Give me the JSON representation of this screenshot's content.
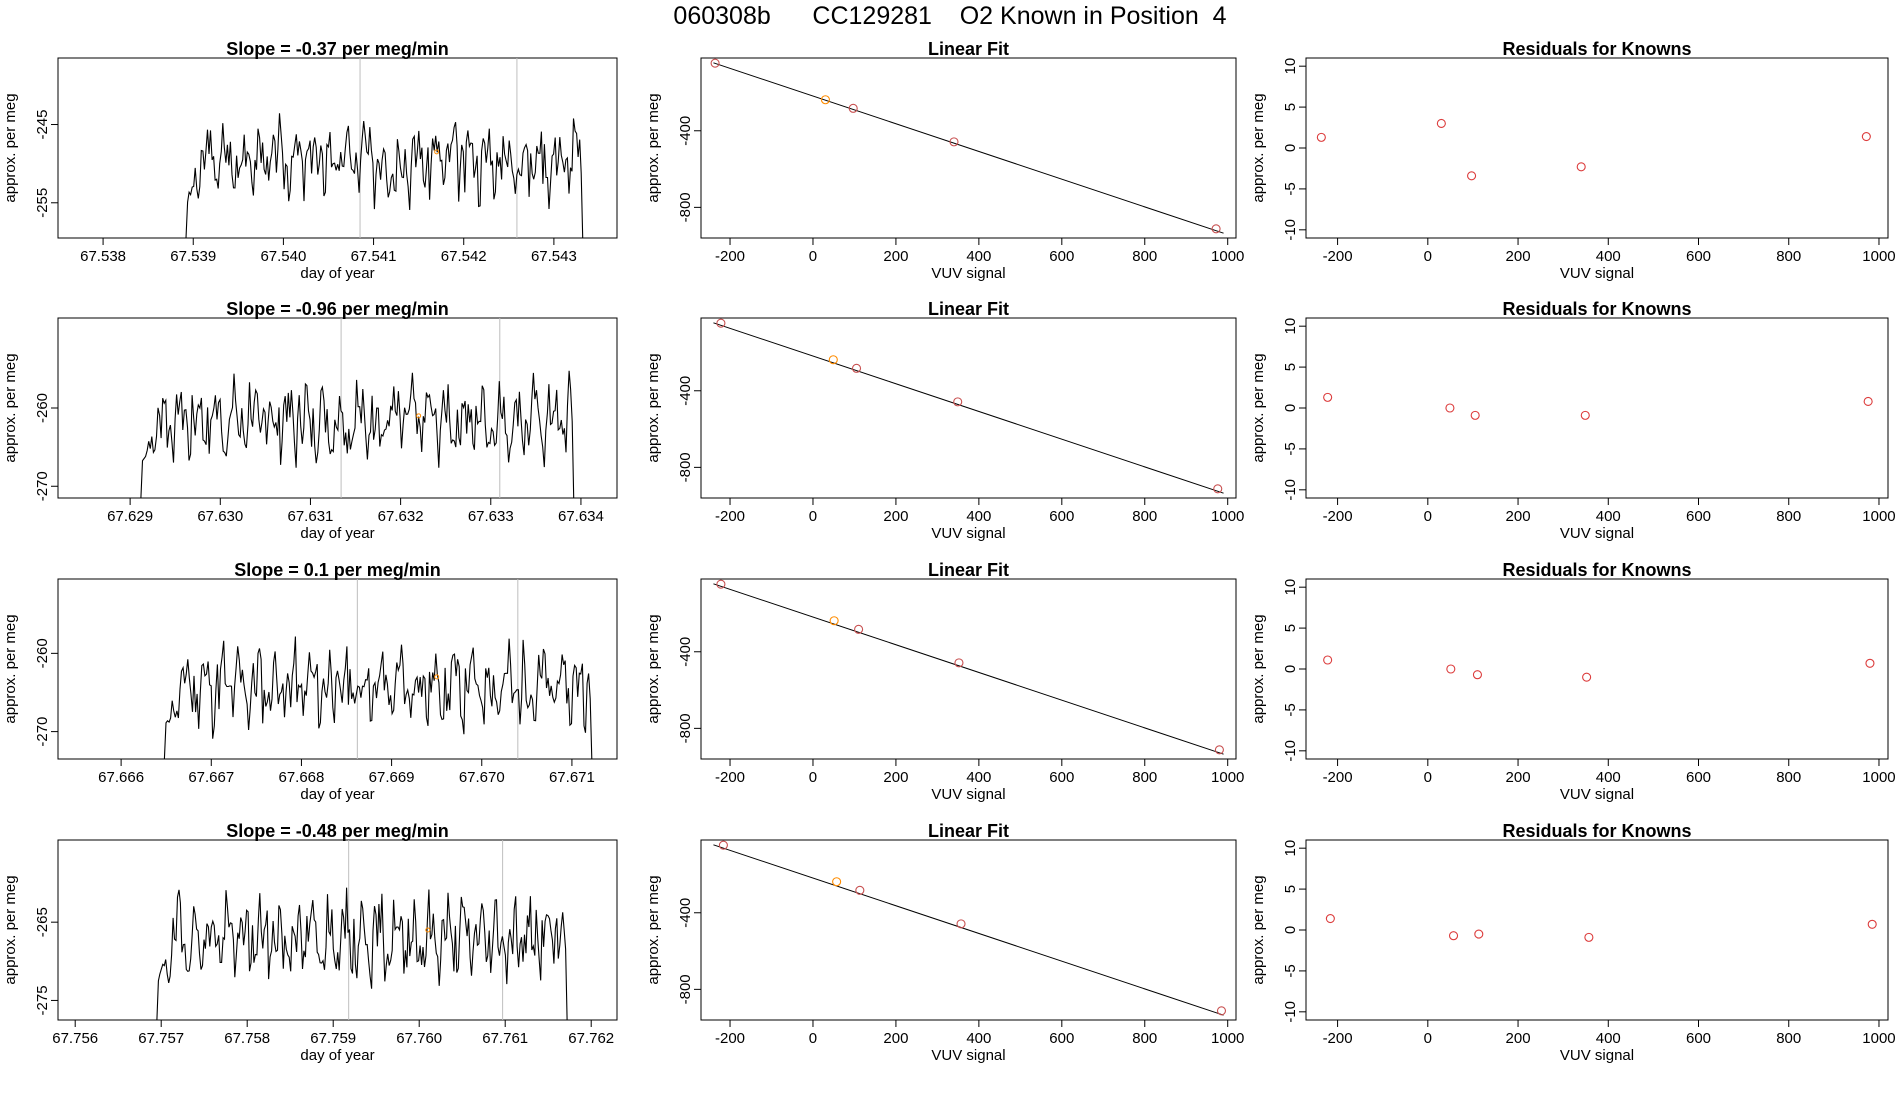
{
  "figure": {
    "title": "060308b      CC129281    O2 Known in Position  4"
  },
  "colors": {
    "trace": "#000000",
    "frame": "#000000",
    "vline": "#bebebe",
    "known_marker": "#ff8c00",
    "fit_marker": "#c85050",
    "residual_marker": "#dc3c3c"
  },
  "chart_data": [
    {
      "type": "line",
      "title": "Slope =  -0.37  per meg/min",
      "xlabel": "day of year",
      "ylabel": "approx. per meg",
      "xlim": [
        67.5375,
        67.5437
      ],
      "ylim": [
        -259.5,
        -236.5
      ],
      "xticks": [
        67.538,
        67.539,
        67.54,
        67.541,
        67.542,
        67.543
      ],
      "xtick_labels": [
        "67.538",
        "67.539",
        "67.540",
        "67.541",
        "67.542",
        "67.543"
      ],
      "yticks": [
        -255,
        -245
      ],
      "ytick_labels": [
        "-255",
        "-245"
      ],
      "vlines": [
        67.54085,
        67.54259
      ],
      "x_start": 67.53892,
      "x_end": 67.54332,
      "n_points": 260,
      "baseline": -249.5,
      "amplitude": 2.7,
      "y_first": -259.5,
      "y_last": -259.5,
      "known_marker": {
        "x": 67.5417,
        "y": -248.5
      },
      "seed": 3
    },
    {
      "type": "scatter",
      "title": "Linear Fit",
      "xlabel": "VUV signal",
      "ylabel": "approx. per meg",
      "xlim": [
        -270,
        1020
      ],
      "ylim": [
        -960,
        -20
      ],
      "xticks": [
        -200,
        0,
        200,
        400,
        600,
        800,
        1000
      ],
      "xtick_labels": [
        "-200",
        "0",
        "200",
        "400",
        "600",
        "800",
        "1000"
      ],
      "yticks": [
        -800,
        -400
      ],
      "ytick_labels": [
        "-800",
        "-400"
      ],
      "fit_line": {
        "x": [
          -240,
          990
        ],
        "y": [
          -45,
          -935
        ]
      },
      "points": [
        {
          "x": -236,
          "y": -47,
          "known": false
        },
        {
          "x": 30,
          "y": -238,
          "known": true
        },
        {
          "x": 97,
          "y": -283,
          "known": false
        },
        {
          "x": 340,
          "y": -458,
          "known": false
        },
        {
          "x": 972,
          "y": -912,
          "known": false
        }
      ]
    },
    {
      "type": "scatter",
      "title": "Residuals for Knowns",
      "xlabel": "VUV signal",
      "ylabel": "approx. per meg",
      "xlim": [
        -270,
        1020
      ],
      "ylim": [
        -11,
        11
      ],
      "xticks": [
        -200,
        0,
        200,
        400,
        600,
        800,
        1000
      ],
      "xtick_labels": [
        "-200",
        "0",
        "200",
        "400",
        "600",
        "800",
        "1000"
      ],
      "yticks": [
        -10,
        -5,
        0,
        5,
        10
      ],
      "ytick_labels": [
        "-10",
        "-5",
        "0",
        "5",
        "10"
      ],
      "points": [
        {
          "x": -236,
          "y": 1.3
        },
        {
          "x": 30,
          "y": 3.0
        },
        {
          "x": 97,
          "y": -3.4
        },
        {
          "x": 340,
          "y": -2.3
        },
        {
          "x": 972,
          "y": 1.4
        }
      ]
    },
    {
      "type": "line",
      "title": "Slope =  -0.96  per meg/min",
      "xlabel": "day of year",
      "ylabel": "approx. per meg",
      "xlim": [
        67.6282,
        67.6344
      ],
      "ylim": [
        -271.5,
        -248.5
      ],
      "xticks": [
        67.629,
        67.63,
        67.631,
        67.632,
        67.633,
        67.634
      ],
      "xtick_labels": [
        "67.629",
        "67.630",
        "67.631",
        "67.632",
        "67.633",
        "67.634"
      ],
      "yticks": [
        -270,
        -260
      ],
      "ytick_labels": [
        "-270",
        "-260"
      ],
      "vlines": [
        67.63134,
        67.6331
      ],
      "x_start": 67.62912,
      "x_end": 67.63392,
      "n_points": 280,
      "baseline": -261.5,
      "amplitude": 2.8,
      "y_first": -271.5,
      "y_last": -271.5,
      "known_marker": {
        "x": 67.6322,
        "y": -261.0
      },
      "seed": 7
    },
    {
      "type": "scatter",
      "title": "Linear Fit",
      "xlabel": "VUV signal",
      "ylabel": "approx. per meg",
      "xlim": [
        -270,
        1020
      ],
      "ylim": [
        -960,
        -20
      ],
      "xticks": [
        -200,
        0,
        200,
        400,
        600,
        800,
        1000
      ],
      "xtick_labels": [
        "-200",
        "0",
        "200",
        "400",
        "600",
        "800",
        "1000"
      ],
      "yticks": [
        -800,
        -400
      ],
      "ytick_labels": [
        "-800",
        "-400"
      ],
      "fit_line": {
        "x": [
          -240,
          990
        ],
        "y": [
          -45,
          -935
        ]
      },
      "points": [
        {
          "x": -222,
          "y": -47,
          "known": false
        },
        {
          "x": 49,
          "y": -238,
          "known": true
        },
        {
          "x": 105,
          "y": -283,
          "known": false
        },
        {
          "x": 349,
          "y": -458,
          "known": false
        },
        {
          "x": 976,
          "y": -912,
          "known": false
        }
      ]
    },
    {
      "type": "scatter",
      "title": "Residuals for Knowns",
      "xlabel": "VUV signal",
      "ylabel": "approx. per meg",
      "xlim": [
        -270,
        1020
      ],
      "ylim": [
        -11,
        11
      ],
      "xticks": [
        -200,
        0,
        200,
        400,
        600,
        800,
        1000
      ],
      "xtick_labels": [
        "-200",
        "0",
        "200",
        "400",
        "600",
        "800",
        "1000"
      ],
      "yticks": [
        -10,
        -5,
        0,
        5,
        10
      ],
      "ytick_labels": [
        "-10",
        "-5",
        "0",
        "5",
        "10"
      ],
      "points": [
        {
          "x": -222,
          "y": 1.3
        },
        {
          "x": 49,
          "y": 0.0
        },
        {
          "x": 105,
          "y": -0.9
        },
        {
          "x": 349,
          "y": -0.9
        },
        {
          "x": 976,
          "y": 0.8
        }
      ]
    },
    {
      "type": "line",
      "title": "Slope =  0.1  per meg/min",
      "xlabel": "day of year",
      "ylabel": "approx. per meg",
      "xlim": [
        67.6653,
        67.6715
      ],
      "ylim": [
        -273.5,
        -250.5
      ],
      "xticks": [
        67.666,
        67.667,
        67.668,
        67.669,
        67.67,
        67.671
      ],
      "xtick_labels": [
        "67.666",
        "67.667",
        "67.668",
        "67.669",
        "67.670",
        "67.671"
      ],
      "yticks": [
        -270,
        -260
      ],
      "ytick_labels": [
        "-270",
        "-260"
      ],
      "vlines": [
        67.66862,
        67.6704
      ],
      "x_start": 67.66648,
      "x_end": 67.67122,
      "n_points": 275,
      "baseline": -264.2,
      "amplitude": 2.8,
      "y_first": -273.5,
      "y_last": -273.5,
      "known_marker": {
        "x": 67.6695,
        "y": -263.0
      },
      "seed": 11
    },
    {
      "type": "scatter",
      "title": "Linear Fit",
      "xlabel": "VUV signal",
      "ylabel": "approx. per meg",
      "xlim": [
        -270,
        1020
      ],
      "ylim": [
        -960,
        -20
      ],
      "xticks": [
        -200,
        0,
        200,
        400,
        600,
        800,
        1000
      ],
      "xtick_labels": [
        "-200",
        "0",
        "200",
        "400",
        "600",
        "800",
        "1000"
      ],
      "yticks": [
        -800,
        -400
      ],
      "ytick_labels": [
        "-800",
        "-400"
      ],
      "fit_line": {
        "x": [
          -240,
          990
        ],
        "y": [
          -45,
          -935
        ]
      },
      "points": [
        {
          "x": -222,
          "y": -47,
          "known": false
        },
        {
          "x": 51,
          "y": -238,
          "known": true
        },
        {
          "x": 110,
          "y": -283,
          "known": false
        },
        {
          "x": 352,
          "y": -458,
          "known": false
        },
        {
          "x": 980,
          "y": -912,
          "known": false
        }
      ]
    },
    {
      "type": "scatter",
      "title": "Residuals for Knowns",
      "xlabel": "VUV signal",
      "ylabel": "approx. per meg",
      "xlim": [
        -270,
        1020
      ],
      "ylim": [
        -11,
        11
      ],
      "xticks": [
        -200,
        0,
        200,
        400,
        600,
        800,
        1000
      ],
      "xtick_labels": [
        "-200",
        "0",
        "200",
        "400",
        "600",
        "800",
        "1000"
      ],
      "yticks": [
        -10,
        -5,
        0,
        5,
        10
      ],
      "ytick_labels": [
        "-10",
        "-5",
        "0",
        "5",
        "10"
      ],
      "points": [
        {
          "x": -222,
          "y": 1.1
        },
        {
          "x": 51,
          "y": 0.0
        },
        {
          "x": 110,
          "y": -0.7
        },
        {
          "x": 352,
          "y": -1.0
        },
        {
          "x": 980,
          "y": 0.7
        }
      ]
    },
    {
      "type": "line",
      "title": "Slope =  -0.48  per meg/min",
      "xlabel": "day of year",
      "ylabel": "approx. per meg",
      "xlim": [
        67.7558,
        67.7623
      ],
      "ylim": [
        -277.5,
        -254.5
      ],
      "xticks": [
        67.756,
        67.757,
        67.758,
        67.759,
        67.76,
        67.761,
        67.762
      ],
      "xtick_labels": [
        "67.756",
        "67.757",
        "67.758",
        "67.759",
        "67.760",
        "67.761",
        "67.762"
      ],
      "yticks": [
        -275,
        -265
      ],
      "ytick_labels": [
        "-275",
        "-265"
      ],
      "vlines": [
        67.75918,
        67.76097
      ],
      "x_start": 67.75695,
      "x_end": 67.76172,
      "n_points": 280,
      "baseline": -267.0,
      "amplitude": 2.8,
      "y_first": -277.5,
      "y_last": -277.5,
      "known_marker": {
        "x": 67.7601,
        "y": -266.0
      },
      "seed": 19
    },
    {
      "type": "scatter",
      "title": "Linear Fit",
      "xlabel": "VUV signal",
      "ylabel": "approx. per meg",
      "xlim": [
        -270,
        1020
      ],
      "ylim": [
        -960,
        -20
      ],
      "xticks": [
        -200,
        0,
        200,
        400,
        600,
        800,
        1000
      ],
      "xtick_labels": [
        "-200",
        "0",
        "200",
        "400",
        "600",
        "800",
        "1000"
      ],
      "yticks": [
        -800,
        -400
      ],
      "ytick_labels": [
        "-800",
        "-400"
      ],
      "fit_line": {
        "x": [
          -240,
          990
        ],
        "y": [
          -45,
          -935
        ]
      },
      "points": [
        {
          "x": -216,
          "y": -47,
          "known": false
        },
        {
          "x": 57,
          "y": -238,
          "known": true
        },
        {
          "x": 113,
          "y": -283,
          "known": false
        },
        {
          "x": 357,
          "y": -458,
          "known": false
        },
        {
          "x": 985,
          "y": -912,
          "known": false
        }
      ]
    },
    {
      "type": "scatter",
      "title": "Residuals for Knowns",
      "xlabel": "VUV signal",
      "ylabel": "approx. per meg",
      "xlim": [
        -270,
        1020
      ],
      "ylim": [
        -11,
        11
      ],
      "xticks": [
        -200,
        0,
        200,
        400,
        600,
        800,
        1000
      ],
      "xtick_labels": [
        "-200",
        "0",
        "200",
        "400",
        "600",
        "800",
        "1000"
      ],
      "yticks": [
        -10,
        -5,
        0,
        5,
        10
      ],
      "ytick_labels": [
        "-10",
        "-5",
        "0",
        "5",
        "10"
      ],
      "points": [
        {
          "x": -216,
          "y": 1.4
        },
        {
          "x": 57,
          "y": -0.7
        },
        {
          "x": 113,
          "y": -0.5
        },
        {
          "x": 357,
          "y": -0.9
        },
        {
          "x": 985,
          "y": 0.7
        }
      ]
    }
  ]
}
